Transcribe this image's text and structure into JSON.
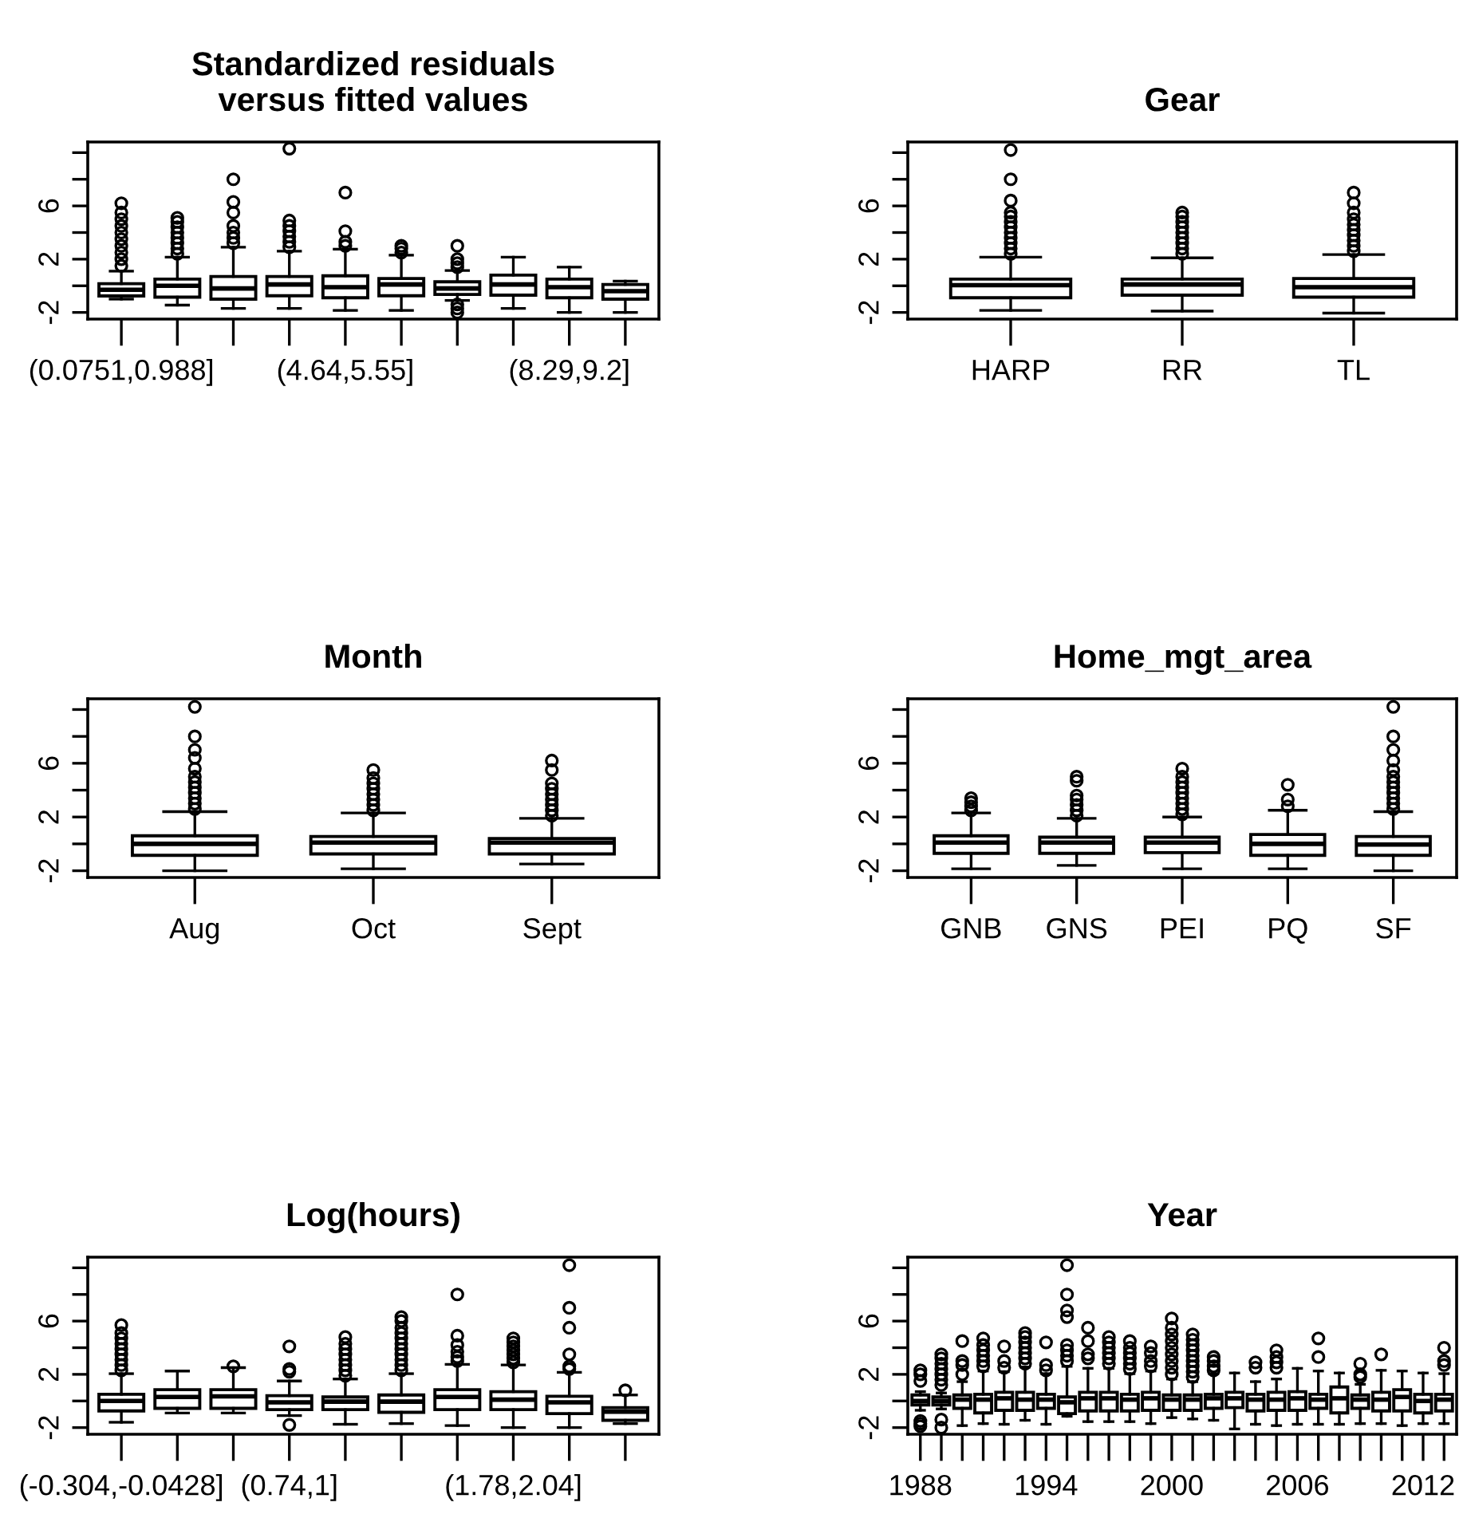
{
  "chart_data": [
    {
      "type": "box",
      "title": "Standardized residuals\nversus fitted values",
      "categories": [
        "(0.0751,0.988]",
        null,
        null,
        null,
        "(4.64,5.55]",
        null,
        null,
        null,
        "(8.29,9.2]",
        null
      ],
      "ylim": [
        -2.5,
        10.8
      ],
      "yticks": [
        -2,
        {
          "value": 0,
          "label": null
        },
        2,
        {
          "value": 4,
          "label": null
        },
        6,
        {
          "value": 8,
          "label": null
        },
        {
          "value": 10,
          "label": null
        }
      ],
      "boxes": [
        {
          "low": -1.0,
          "q1": -0.76,
          "median": -0.3,
          "q3": 0.16,
          "high": 1.1,
          "outliers": [
            1.5,
            2.0,
            2.5,
            3.0,
            3.5,
            4.0,
            4.5,
            5.0,
            5.5,
            6.2
          ]
        },
        {
          "low": -1.45,
          "q1": -0.85,
          "median": 0.0,
          "q3": 0.5,
          "high": 2.15,
          "outliers": [
            2.4,
            2.8,
            3.2,
            3.6,
            4.0,
            4.4,
            4.8,
            5.1
          ]
        },
        {
          "low": -1.7,
          "q1": -1.0,
          "median": -0.2,
          "q3": 0.7,
          "high": 2.9,
          "outliers": [
            3.2,
            3.6,
            4.0,
            4.5,
            5.5,
            6.3,
            8.0
          ]
        },
        {
          "low": -1.7,
          "q1": -0.75,
          "median": 0.1,
          "q3": 0.7,
          "high": 2.6,
          "outliers": [
            2.9,
            3.3,
            3.7,
            4.1,
            4.5,
            4.9,
            10.3
          ]
        },
        {
          "low": -1.85,
          "q1": -0.9,
          "median": -0.1,
          "q3": 0.75,
          "high": 2.75,
          "outliers": [
            3.0,
            3.3,
            4.1,
            7.0
          ]
        },
        {
          "low": -1.85,
          "q1": -0.75,
          "median": 0.1,
          "q3": 0.55,
          "high": 2.3,
          "outliers": [
            2.5,
            2.8,
            3.0
          ]
        },
        {
          "low": -1.1,
          "q1": -0.65,
          "median": -0.2,
          "q3": 0.3,
          "high": 1.15,
          "outliers": [
            -2.0,
            -1.7,
            -1.4,
            1.4,
            1.7,
            2.0,
            3.0
          ]
        },
        {
          "low": -1.7,
          "q1": -0.7,
          "median": 0.1,
          "q3": 0.8,
          "high": 2.15
        },
        {
          "low": -2.0,
          "q1": -0.9,
          "median": -0.1,
          "q3": 0.5,
          "high": 1.4
        },
        {
          "low": -2.0,
          "q1": -1.0,
          "median": -0.4,
          "q3": 0.1,
          "high": 0.35
        }
      ]
    },
    {
      "type": "box",
      "title": "Gear",
      "categories": [
        "HARP",
        "RR",
        "TL"
      ],
      "ylim": [
        -2.5,
        10.8
      ],
      "yticks": [
        -2,
        {
          "value": 0,
          "label": null
        },
        2,
        {
          "value": 4,
          "label": null
        },
        6,
        {
          "value": 8,
          "label": null
        },
        {
          "value": 10,
          "label": null
        }
      ],
      "boxes": [
        {
          "low": -1.85,
          "q1": -0.9,
          "median": 0.05,
          "q3": 0.5,
          "high": 2.15,
          "outliers": [
            2.4,
            2.8,
            3.2,
            3.6,
            4.0,
            4.4,
            4.8,
            5.2,
            5.5,
            6.4,
            8.0,
            10.2
          ]
        },
        {
          "low": -1.9,
          "q1": -0.7,
          "median": 0.1,
          "q3": 0.5,
          "high": 2.1,
          "outliers": [
            2.4,
            2.8,
            3.2,
            3.6,
            4.0,
            4.4,
            4.8,
            5.2,
            5.5
          ]
        },
        {
          "low": -2.05,
          "q1": -0.85,
          "median": -0.1,
          "q3": 0.55,
          "high": 2.35,
          "outliers": [
            2.6,
            3.0,
            3.4,
            3.8,
            4.2,
            4.6,
            5.0,
            5.5,
            6.2,
            7.0
          ]
        }
      ]
    },
    {
      "type": "box",
      "title": "Month",
      "categories": [
        "Aug",
        "Oct",
        "Sept"
      ],
      "ylim": [
        -2.5,
        10.8
      ],
      "yticks": [
        -2,
        {
          "value": 0,
          "label": null
        },
        2,
        {
          "value": 4,
          "label": null
        },
        6,
        {
          "value": 8,
          "label": null
        },
        {
          "value": 10,
          "label": null
        }
      ],
      "boxes": [
        {
          "low": -2.0,
          "q1": -0.85,
          "median": 0.0,
          "q3": 0.6,
          "high": 2.4,
          "outliers": [
            2.6,
            3.0,
            3.4,
            3.8,
            4.2,
            4.6,
            5.0,
            5.6,
            6.4,
            7.0,
            8.0,
            10.2
          ]
        },
        {
          "low": -1.85,
          "q1": -0.75,
          "median": 0.1,
          "q3": 0.55,
          "high": 2.3,
          "outliers": [
            2.5,
            2.9,
            3.3,
            3.7,
            4.1,
            4.5,
            4.9,
            5.5
          ]
        },
        {
          "low": -1.5,
          "q1": -0.75,
          "median": 0.1,
          "q3": 0.4,
          "high": 1.9,
          "outliers": [
            2.1,
            2.5,
            2.9,
            3.3,
            3.7,
            4.1,
            4.5,
            5.5,
            6.2
          ]
        }
      ]
    },
    {
      "type": "box",
      "title": "Home_mgt_area",
      "categories": [
        "GNB",
        "GNS",
        "PEI",
        "PQ",
        "SF"
      ],
      "ylim": [
        -2.5,
        10.8
      ],
      "yticks": [
        -2,
        {
          "value": 0,
          "label": null
        },
        2,
        {
          "value": 4,
          "label": null
        },
        6,
        {
          "value": 8,
          "label": null
        },
        {
          "value": 10,
          "label": null
        }
      ],
      "boxes": [
        {
          "low": -1.85,
          "q1": -0.7,
          "median": 0.1,
          "q3": 0.6,
          "high": 2.3,
          "outliers": [
            2.5,
            2.8,
            3.1,
            3.4
          ]
        },
        {
          "low": -1.6,
          "q1": -0.7,
          "median": 0.1,
          "q3": 0.5,
          "high": 1.9,
          "outliers": [
            2.1,
            2.5,
            2.9,
            3.3,
            3.6,
            4.7,
            5.0
          ]
        },
        {
          "low": -1.85,
          "q1": -0.65,
          "median": 0.1,
          "q3": 0.5,
          "high": 2.0,
          "outliers": [
            2.2,
            2.6,
            3.0,
            3.4,
            3.8,
            4.2,
            4.6,
            5.0,
            5.6
          ]
        },
        {
          "low": -1.85,
          "q1": -0.85,
          "median": 0.0,
          "q3": 0.7,
          "high": 2.5,
          "outliers": [
            2.8,
            3.3,
            4.4
          ]
        },
        {
          "low": -2.0,
          "q1": -0.85,
          "median": -0.05,
          "q3": 0.55,
          "high": 2.4,
          "outliers": [
            2.6,
            3.0,
            3.4,
            3.8,
            4.2,
            4.6,
            5.0,
            5.5,
            6.2,
            7.0,
            8.0,
            10.2
          ]
        }
      ]
    },
    {
      "type": "box",
      "title": "Log(hours)",
      "categories": [
        "(-0.304,-0.0428]",
        null,
        null,
        "(0.74,1]",
        null,
        null,
        null,
        "(1.78,2.04]",
        null,
        null
      ],
      "ylim": [
        -2.5,
        10.8
      ],
      "yticks": [
        -2,
        {
          "value": 0,
          "label": null
        },
        2,
        {
          "value": 4,
          "label": null
        },
        6,
        {
          "value": 8,
          "label": null
        },
        {
          "value": 10,
          "label": null
        }
      ],
      "boxes": [
        {
          "low": -1.6,
          "q1": -0.75,
          "median": 0.0,
          "q3": 0.5,
          "high": 2.05,
          "outliers": [
            2.3,
            2.7,
            3.1,
            3.5,
            3.9,
            4.3,
            4.7,
            5.1,
            5.7
          ]
        },
        {
          "low": -0.9,
          "q1": -0.55,
          "median": 0.3,
          "q3": 0.85,
          "high": 2.25
        },
        {
          "low": -0.9,
          "q1": -0.55,
          "median": 0.35,
          "q3": 0.85,
          "high": 2.5,
          "outliers": [
            2.6
          ]
        },
        {
          "low": -1.1,
          "q1": -0.65,
          "median": -0.1,
          "q3": 0.4,
          "high": 1.5,
          "outliers": [
            -1.8,
            2.2,
            2.4,
            4.1
          ]
        },
        {
          "low": -1.75,
          "q1": -0.65,
          "median": -0.05,
          "q3": 0.3,
          "high": 1.65,
          "outliers": [
            1.9,
            2.3,
            2.7,
            3.1,
            3.5,
            3.9,
            4.3,
            4.8
          ]
        },
        {
          "low": -1.7,
          "q1": -0.85,
          "median": -0.05,
          "q3": 0.45,
          "high": 2.05,
          "outliers": [
            2.3,
            2.7,
            3.1,
            3.5,
            3.9,
            4.3,
            4.7,
            5.1,
            5.5,
            6.0,
            6.3
          ]
        },
        {
          "low": -1.85,
          "q1": -0.65,
          "median": 0.3,
          "q3": 0.85,
          "high": 2.75,
          "outliers": [
            3.0,
            3.3,
            3.7,
            4.2,
            4.9,
            8.0
          ]
        },
        {
          "low": -2.0,
          "q1": -0.65,
          "median": 0.1,
          "q3": 0.7,
          "high": 2.7,
          "outliers": [
            2.9,
            3.2,
            3.5,
            3.8,
            4.1,
            4.4,
            4.7
          ]
        },
        {
          "low": -2.0,
          "q1": -0.95,
          "median": -0.1,
          "q3": 0.35,
          "high": 2.15,
          "outliers": [
            2.4,
            2.6,
            3.5,
            5.5,
            7.0,
            10.2
          ]
        },
        {
          "low": -1.7,
          "q1": -1.45,
          "median": -0.8,
          "q3": -0.5,
          "high": 0.45,
          "outliers": [
            0.8
          ]
        }
      ]
    },
    {
      "type": "box",
      "title": "Year",
      "categories": [
        "1988",
        null,
        null,
        null,
        null,
        null,
        "1994",
        null,
        null,
        null,
        null,
        null,
        "2000",
        null,
        null,
        null,
        null,
        null,
        "2006",
        null,
        null,
        null,
        null,
        null,
        "2012",
        null
      ],
      "ylim": [
        -2.5,
        10.8
      ],
      "yticks": [
        -2,
        {
          "value": 0,
          "label": null
        },
        2,
        {
          "value": 4,
          "label": null
        },
        6,
        {
          "value": 8,
          "label": null
        },
        {
          "value": 10,
          "label": null
        }
      ],
      "boxes": [
        {
          "low": -0.7,
          "q1": -0.3,
          "median": 0.0,
          "q3": 0.45,
          "high": 0.7,
          "outliers": [
            -1.9,
            -1.7,
            -1.5,
            1.5,
            2.0,
            2.3
          ]
        },
        {
          "low": -0.6,
          "q1": -0.3,
          "median": 0.0,
          "q3": 0.3,
          "high": 0.6,
          "outliers": [
            -2.0,
            -1.4,
            1.2,
            1.6,
            2.0,
            2.4,
            2.8,
            3.2,
            3.5
          ]
        },
        {
          "low": -1.85,
          "q1": -0.55,
          "median": 0.1,
          "q3": 0.45,
          "high": 1.45,
          "outliers": [
            2.0,
            2.7,
            3.0,
            4.5
          ]
        },
        {
          "low": -1.7,
          "q1": -0.9,
          "median": 0.1,
          "q3": 0.5,
          "high": 2.25,
          "outliers": [
            2.6,
            3.0,
            3.4,
            3.8,
            4.2,
            4.7
          ]
        },
        {
          "low": -1.75,
          "q1": -0.7,
          "median": 0.2,
          "q3": 0.65,
          "high": 2.2,
          "outliers": [
            2.5,
            3.0,
            4.1
          ]
        },
        {
          "low": -1.45,
          "q1": -0.7,
          "median": 0.1,
          "q3": 0.65,
          "high": 2.55,
          "outliers": [
            2.8,
            3.2,
            3.6,
            4.0,
            4.4,
            4.8,
            5.1
          ]
        },
        {
          "low": -1.75,
          "q1": -0.55,
          "median": 0.1,
          "q3": 0.5,
          "high": 2.05,
          "outliers": [
            2.3,
            2.7,
            4.4
          ]
        },
        {
          "low": -1.15,
          "q1": -0.95,
          "median": -0.1,
          "q3": 0.3,
          "high": 2.6,
          "outliers": [
            3.0,
            3.4,
            3.8,
            4.2,
            6.3,
            6.8,
            8.0,
            10.2
          ]
        },
        {
          "low": -1.55,
          "q1": -0.75,
          "median": 0.2,
          "q3": 0.65,
          "high": 2.45,
          "outliers": [
            3.2,
            3.5,
            4.5,
            5.5
          ]
        },
        {
          "low": -1.55,
          "q1": -0.75,
          "median": 0.2,
          "q3": 0.65,
          "high": 2.45,
          "outliers": [
            2.8,
            3.2,
            3.6,
            4.0,
            4.4,
            4.8
          ]
        },
        {
          "low": -1.55,
          "q1": -0.75,
          "median": 0.1,
          "q3": 0.5,
          "high": 2.05,
          "outliers": [
            2.4,
            2.8,
            3.2,
            3.6,
            4.0,
            4.5
          ]
        },
        {
          "low": -1.7,
          "q1": -0.7,
          "median": 0.2,
          "q3": 0.65,
          "high": 2.25,
          "outliers": [
            2.6,
            3.0,
            3.6,
            4.1
          ]
        },
        {
          "low": -1.25,
          "q1": -0.7,
          "median": 0.1,
          "q3": 0.45,
          "high": 1.65,
          "outliers": [
            2.0,
            2.5,
            3.0,
            3.5,
            4.0,
            4.5,
            5.0,
            5.5,
            6.2
          ]
        },
        {
          "low": -1.35,
          "q1": -0.7,
          "median": 0.1,
          "q3": 0.45,
          "high": 1.45,
          "outliers": [
            1.8,
            2.2,
            2.6,
            3.0,
            3.4,
            3.8,
            4.2,
            4.6,
            5.0
          ]
        },
        {
          "low": -1.45,
          "q1": -0.55,
          "median": 0.2,
          "q3": 0.5,
          "high": 2.05,
          "outliers": [
            2.3,
            2.6,
            3.0,
            3.3
          ]
        },
        {
          "low": -2.1,
          "q1": -0.5,
          "median": 0.2,
          "q3": 0.65,
          "high": 2.1
        },
        {
          "low": -1.75,
          "q1": -0.75,
          "median": 0.1,
          "q3": 0.5,
          "high": 1.45,
          "outliers": [
            2.5,
            2.9
          ]
        },
        {
          "low": -1.85,
          "q1": -0.7,
          "median": 0.1,
          "q3": 0.65,
          "high": 1.65,
          "outliers": [
            2.5,
            2.9,
            3.3,
            3.8
          ]
        },
        {
          "low": -1.75,
          "q1": -0.7,
          "median": 0.2,
          "q3": 0.7,
          "high": 2.45
        },
        {
          "low": -1.75,
          "q1": -0.55,
          "median": 0.1,
          "q3": 0.5,
          "high": 2.25,
          "outliers": [
            3.3,
            4.7
          ]
        },
        {
          "low": -1.75,
          "q1": -0.9,
          "median": 0.2,
          "q3": 1.05,
          "high": 2.1
        },
        {
          "low": -1.7,
          "q1": -0.55,
          "median": 0.1,
          "q3": 0.45,
          "high": 1.25,
          "outliers": [
            1.8,
            2.0,
            2.8
          ]
        },
        {
          "low": -1.7,
          "q1": -0.75,
          "median": 0.1,
          "q3": 0.65,
          "high": 2.3,
          "outliers": [
            3.5
          ]
        },
        {
          "low": -1.85,
          "q1": -0.75,
          "median": 0.3,
          "q3": 0.85,
          "high": 2.25
        },
        {
          "low": -1.7,
          "q1": -0.9,
          "median": 0.0,
          "q3": 0.5,
          "high": 2.1
        },
        {
          "low": -1.7,
          "q1": -0.75,
          "median": 0.1,
          "q3": 0.5,
          "high": 2.05,
          "outliers": [
            2.7,
            3.0,
            4.0
          ]
        }
      ]
    }
  ]
}
